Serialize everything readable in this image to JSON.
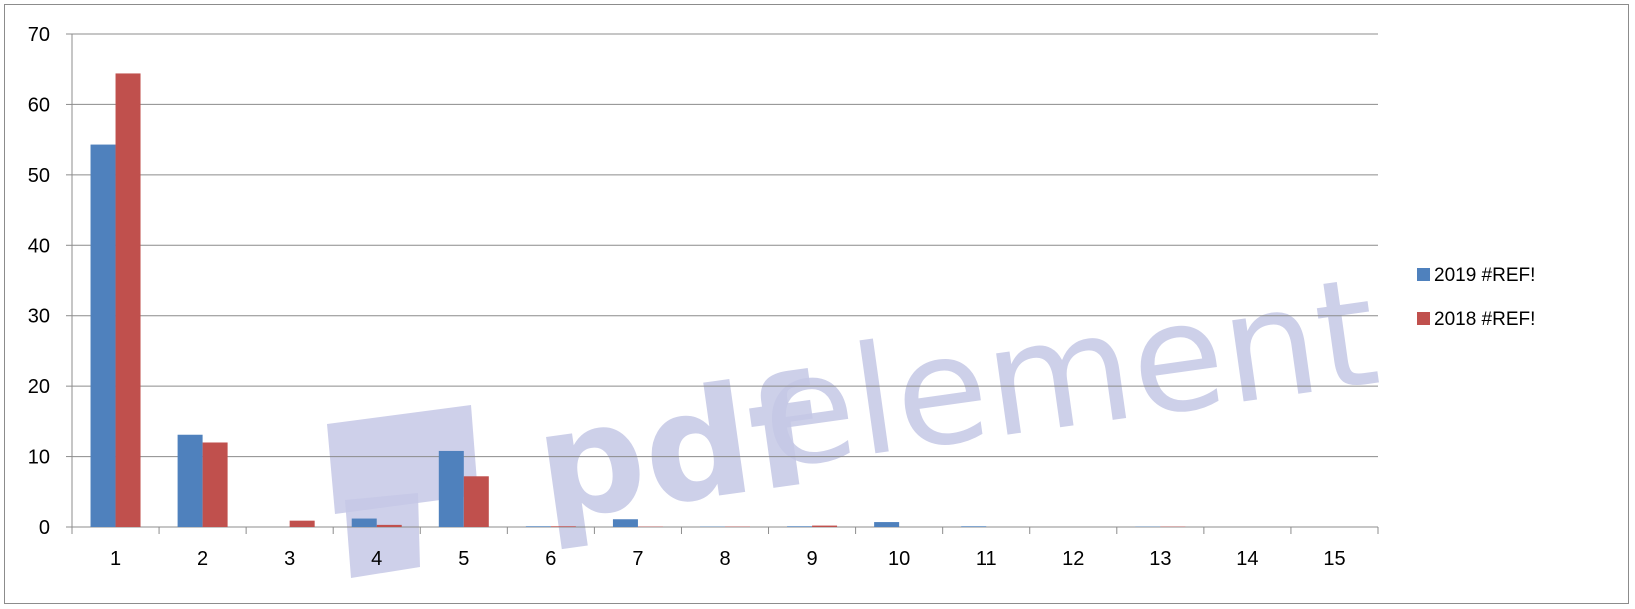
{
  "chart_data": {
    "type": "bar",
    "title": "",
    "xlabel": "",
    "ylabel": "",
    "categories": [
      "1",
      "2",
      "3",
      "4",
      "5",
      "6",
      "7",
      "8",
      "9",
      "10",
      "11",
      "12",
      "13",
      "14",
      "15"
    ],
    "series": [
      {
        "name": "2019 #REF!",
        "color": "#4f81bd",
        "values": [
          54.3,
          13.1,
          0,
          1.2,
          10.8,
          0.1,
          1.1,
          0.05,
          0.1,
          0.7,
          0.1,
          0,
          0.05,
          0,
          0
        ]
      },
      {
        "name": "2018 #REF!",
        "color": "#c0504d",
        "values": [
          64.4,
          12.0,
          0.9,
          0.3,
          7.2,
          0.1,
          0.05,
          0.05,
          0.2,
          0,
          0,
          0,
          0.05,
          0,
          0
        ]
      }
    ],
    "yticks": [
      0,
      10,
      20,
      30,
      40,
      50,
      60,
      70
    ],
    "ylim": [
      0,
      70
    ],
    "grid": true,
    "legend": "right"
  },
  "watermark": {
    "text_bold": "pdf",
    "text_light": "element",
    "color": "#c5c8e6"
  }
}
